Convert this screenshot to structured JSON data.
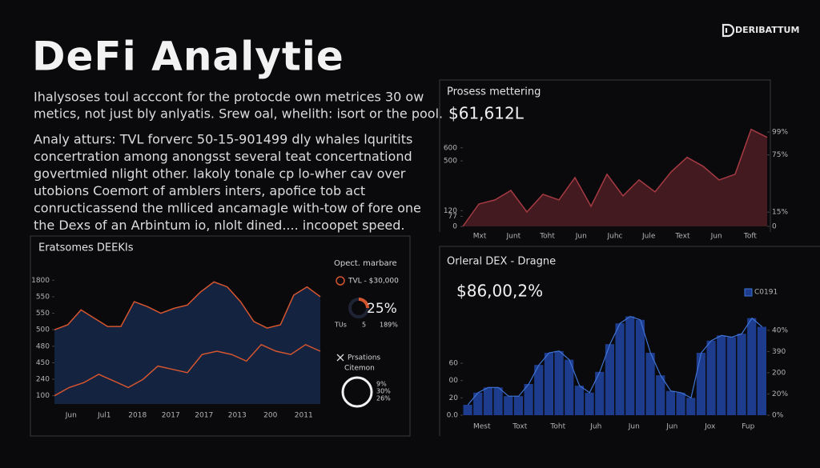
{
  "header": {
    "brand": "DERIBATTUM",
    "title": "DeFi Analytie"
  },
  "intro": [
    "Ihalysoses toul acccont for the protocde own metrices 30 ow",
    "metics, not just bly anlyatis. Srew oal, whelith: isort or the pool."
  ],
  "body": [
    "Analy atturs: TVL forverc 50-15-901499 dly whales lquritits",
    "concertration among anongsst several teat concertnationd",
    "govertmied nlight other. lakoly tonale cp lo-wher cav over",
    "utobions Coemort of amblers inters, apofice tob act",
    "conructicassend the mlliced ancamagle with-tow of fore one",
    "the Dexs of an Arbintum io, nlolt dined.... incoopet speed."
  ],
  "chart_data": [
    {
      "type": "area",
      "title": "Prosess mettering",
      "subtitle": "$61,612L",
      "x_labels": [
        "Mxt",
        "Junt",
        "Toht",
        "Jun",
        "Juhc",
        "Jule",
        "Text",
        "Jun",
        "Toft"
      ],
      "series": [
        {
          "color": "#a63a42",
          "fill": "#4a1c24",
          "values": [
            0,
            171,
            202,
            275,
            110,
            245,
            202,
            373,
            153,
            398,
            233,
            355,
            263,
            416,
            527,
            459,
            355,
            398,
            741,
            680
          ]
        }
      ],
      "ylim": [
        0,
        800
      ],
      "yticks": [
        0,
        77,
        120,
        500,
        600
      ],
      "y2lim": [
        0,
        110
      ],
      "y2ticks": [
        0,
        {
          "value": 15,
          "label": "15%"
        },
        {
          "value": 75,
          "label": "75%"
        },
        {
          "value": 99,
          "label": "99%"
        }
      ]
    },
    {
      "type": "line",
      "title": "Eratsomes DEEKIs",
      "x_labels": [
        "Jun",
        "Jul1",
        "2018",
        "2017",
        "2017",
        "2013",
        "200",
        "2011"
      ],
      "series": [
        {
          "color": "#d4552e",
          "fill": "#16284a",
          "values": [
            4.0,
            4.3,
            5.2,
            4.7,
            4.2,
            4.2,
            5.7,
            5.4,
            5.0,
            5.3,
            5.5,
            6.3,
            6.9,
            6.6,
            5.7,
            4.5,
            4.1,
            4.3,
            6.1,
            6.6,
            6.0
          ]
        },
        {
          "color": "#d4552e",
          "values": [
            0.0,
            0.5,
            0.8,
            1.3,
            0.9,
            0.5,
            1.0,
            1.8,
            1.6,
            1.4,
            2.5,
            2.7,
            2.5,
            2.1,
            3.1,
            2.7,
            2.5,
            3.1,
            2.7
          ]
        }
      ],
      "ylim": [
        -0.5,
        7.5
      ],
      "yticks": [
        {
          "value": 0,
          "label": "100"
        },
        {
          "value": 1,
          "label": "240"
        },
        {
          "value": 2,
          "label": "450"
        },
        {
          "value": 3,
          "label": "480"
        },
        {
          "value": 4,
          "label": "500"
        },
        {
          "value": 5,
          "label": "550"
        },
        {
          "value": 6,
          "label": "550"
        },
        {
          "value": 7,
          "label": "1800"
        }
      ]
    },
    {
      "type": "bar",
      "title": "Orleral DEX - Dragne",
      "subtitle": "$86,00,2%",
      "x_labels": [
        "Mest",
        "Toxt",
        "Toht",
        "Juh",
        "Jun",
        "Jun",
        "Jox",
        "Fup"
      ],
      "series": [
        {
          "name": "C0191",
          "color": "#1d3c8e",
          "line": "#3f74d6",
          "values": [
            0.6,
            1.3,
            1.6,
            1.6,
            1.1,
            1.1,
            1.8,
            2.9,
            3.6,
            3.7,
            3.2,
            1.7,
            1.3,
            2.5,
            4.1,
            5.3,
            5.7,
            5.5,
            3.6,
            2.3,
            1.4,
            1.3,
            1.0,
            3.6,
            4.3,
            4.6,
            4.5,
            4.7,
            5.6,
            5.1
          ]
        }
      ],
      "ylim": [
        0,
        6
      ],
      "yticks": [
        {
          "value": 0,
          "label": "0.0"
        },
        {
          "value": 1,
          "label": "20"
        },
        {
          "value": 2,
          "label": "00"
        },
        {
          "value": 3,
          "label": "60"
        }
      ],
      "y2lim": [
        0,
        4.9
      ],
      "y2ticks": [
        {
          "value": 0,
          "label": "0%"
        },
        {
          "value": 1,
          "label": "20%"
        },
        {
          "value": 2,
          "label": "200"
        },
        {
          "value": 3,
          "label": "390"
        },
        {
          "value": 4,
          "label": "40%"
        }
      ]
    }
  ],
  "side_panel": {
    "title": "Opect. marbare",
    "legend": "TVL - $30,000",
    "donut": {
      "value": 25,
      "label": "25%"
    },
    "stats": [
      "TUs",
      "5",
      "189%"
    ],
    "section": [
      "Prsations",
      "Citemon"
    ],
    "ring_labels": [
      "9%",
      "30%",
      "26%"
    ]
  }
}
